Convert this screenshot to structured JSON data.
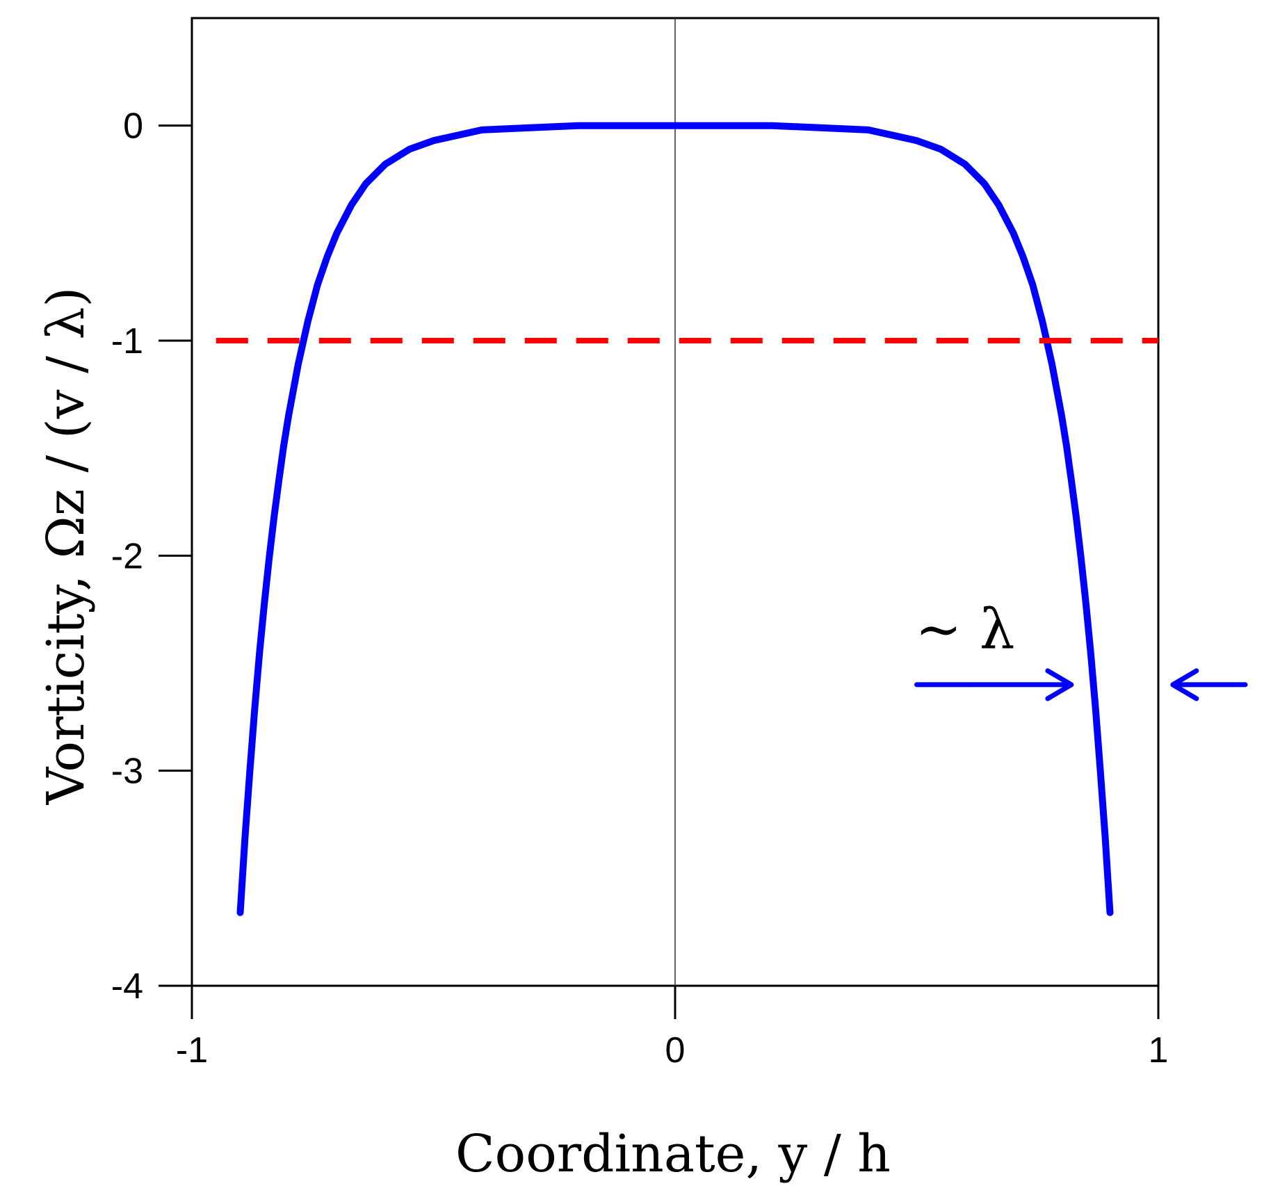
{
  "chart_data": {
    "type": "line",
    "xlabel": "Coordinate, y / h",
    "ylabel": "Vorticity, Ωz / (v / λ)",
    "xlim": [
      -1,
      1
    ],
    "ylim": [
      -4,
      0.5
    ],
    "xticks": [
      -1,
      0,
      1
    ],
    "xtick_labels": [
      "-1",
      "0",
      "1"
    ],
    "yticks": [
      0,
      -1,
      -2,
      -3,
      -4
    ],
    "ytick_labels": [
      "0",
      "-1",
      "-2",
      "-3",
      "-4"
    ],
    "grid": false,
    "colors": {
      "curve": "#0000ff",
      "reference": "#ff0000",
      "axes": "#000000"
    },
    "series": [
      {
        "style": "solid",
        "color": "#0000ff",
        "x": [
          -0.9,
          -0.89,
          -0.88,
          -0.87,
          -0.86,
          -0.85,
          -0.84,
          -0.83,
          -0.82,
          -0.81,
          -0.8,
          -0.78,
          -0.76,
          -0.74,
          -0.72,
          -0.7,
          -0.67,
          -0.64,
          -0.6,
          -0.55,
          -0.5,
          -0.4,
          -0.3,
          -0.2,
          0,
          0.2,
          0.3,
          0.4,
          0.5,
          0.55,
          0.6,
          0.64,
          0.67,
          0.7,
          0.72,
          0.74,
          0.76,
          0.78,
          0.8,
          0.81,
          0.82,
          0.83,
          0.84,
          0.85,
          0.86,
          0.87,
          0.88,
          0.89,
          0.9
        ],
        "y": [
          -3.66,
          -3.31,
          -3.0,
          -2.71,
          -2.45,
          -2.22,
          -2.01,
          -1.82,
          -1.65,
          -1.49,
          -1.35,
          -1.11,
          -0.91,
          -0.74,
          -0.61,
          -0.5,
          -0.37,
          -0.27,
          -0.18,
          -0.11,
          -0.07,
          -0.02,
          -0.01,
          0,
          0,
          0,
          -0.01,
          -0.02,
          -0.07,
          -0.11,
          -0.18,
          -0.27,
          -0.37,
          -0.5,
          -0.61,
          -0.74,
          -0.91,
          -1.11,
          -1.35,
          -1.49,
          -1.65,
          -1.82,
          -2.01,
          -2.22,
          -2.45,
          -2.71,
          -3.0,
          -3.31,
          -3.66
        ]
      },
      {
        "style": "dashed",
        "color": "#ff0000",
        "x": [
          -0.95,
          1
        ],
        "y": [
          -1,
          -1
        ]
      }
    ],
    "annotations": [
      {
        "text": "~ λ",
        "x": 0.6,
        "y": -2.43
      }
    ],
    "arrows": [
      {
        "from_x": 0.5,
        "to_x": 0.82,
        "y": -2.6
      },
      {
        "from_x": 1.18,
        "to_x": 1.03,
        "y": -2.6
      }
    ]
  }
}
